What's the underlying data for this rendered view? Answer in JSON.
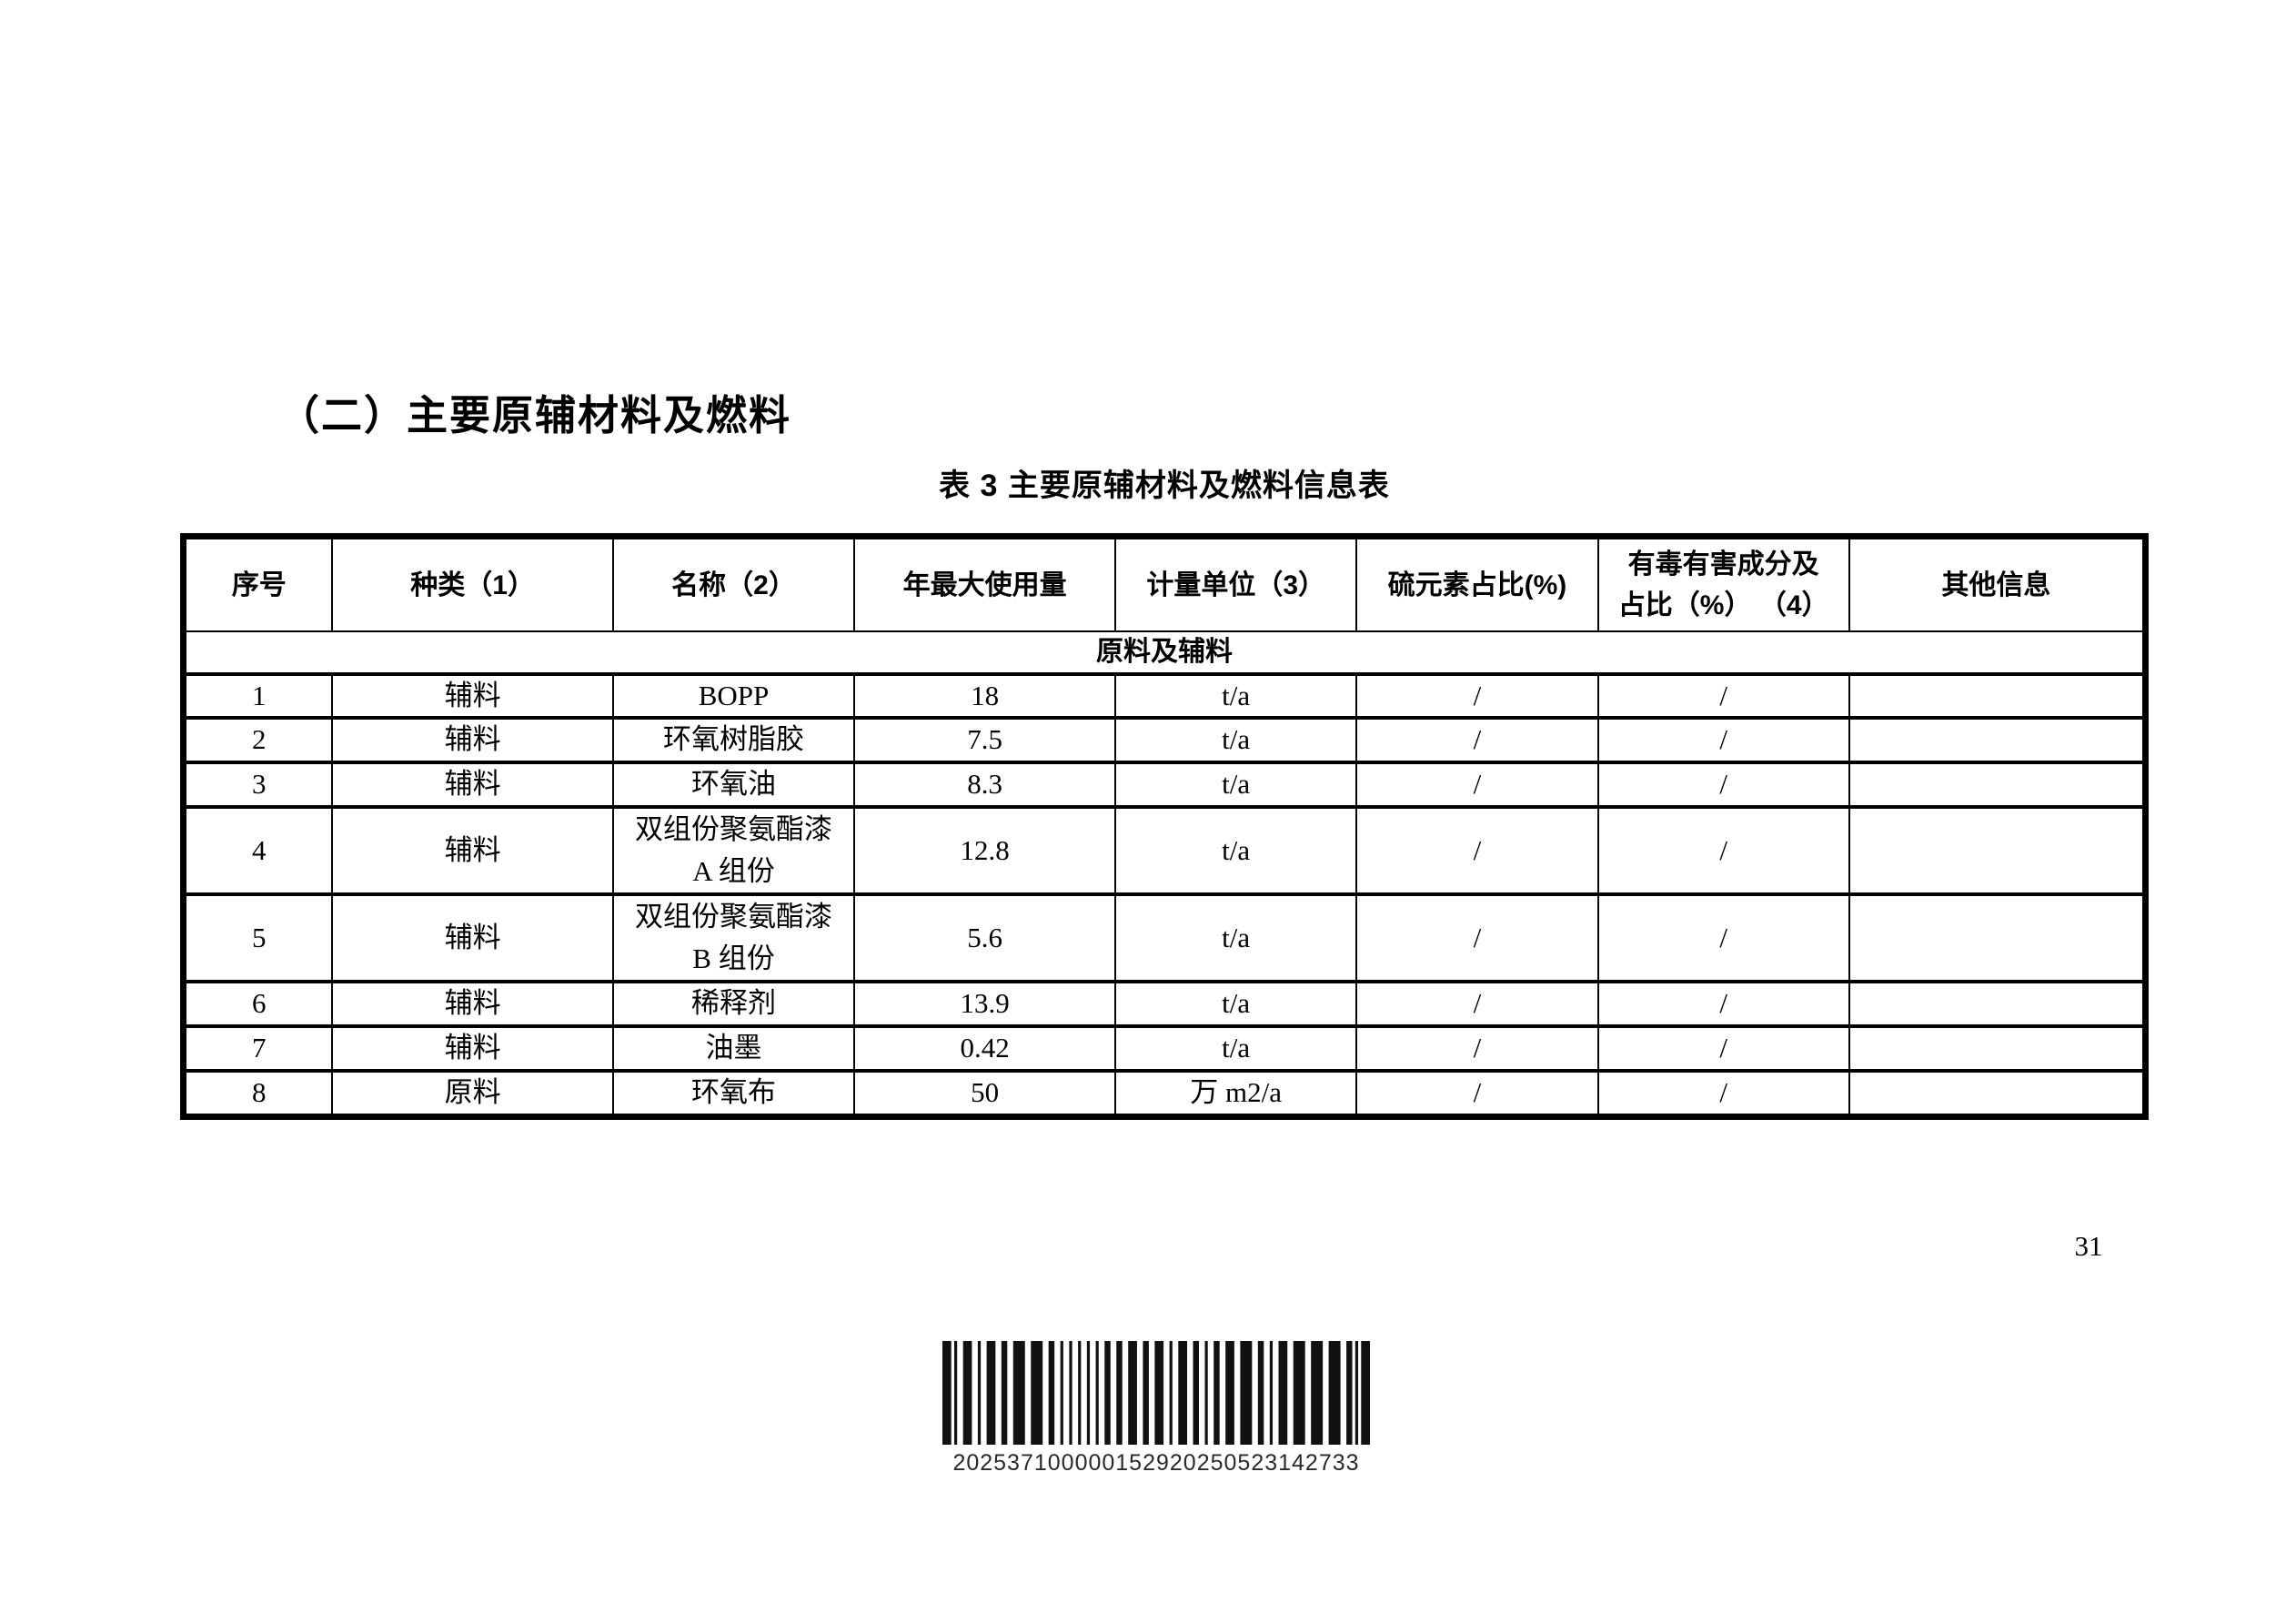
{
  "heading": "（二）主要原辅材料及燃料",
  "page_number": "31",
  "table": {
    "caption": "表 3 主要原辅材料及燃料信息表",
    "columns": [
      "序号",
      "种类（1）",
      "名称（2）",
      "年最大使用量",
      "计量单位（3）",
      "硫元素占比(%)",
      "有毒有害成分及\n占比（%） （4）",
      "其他信息"
    ],
    "col_widths_percent": [
      7.6,
      14.3,
      12.3,
      13.3,
      12.3,
      12.3,
      12.8,
      15.1
    ],
    "section_header": "原料及辅料",
    "rows": [
      {
        "no": "1",
        "type": "辅料",
        "name": "BOPP",
        "max_annual_usage": "18",
        "unit": "t/a",
        "sulfur_percent": "/",
        "toxic_percent": "/",
        "other": ""
      },
      {
        "no": "2",
        "type": "辅料",
        "name": "环氧树脂胶",
        "max_annual_usage": "7.5",
        "unit": "t/a",
        "sulfur_percent": "/",
        "toxic_percent": "/",
        "other": ""
      },
      {
        "no": "3",
        "type": "辅料",
        "name": "环氧油",
        "max_annual_usage": "8.3",
        "unit": "t/a",
        "sulfur_percent": "/",
        "toxic_percent": "/",
        "other": ""
      },
      {
        "no": "4",
        "type": "辅料",
        "name": "双组份聚氨酯漆\nA 组份",
        "max_annual_usage": "12.8",
        "unit": "t/a",
        "sulfur_percent": "/",
        "toxic_percent": "/",
        "other": ""
      },
      {
        "no": "5",
        "type": "辅料",
        "name": "双组份聚氨酯漆\nB 组份",
        "max_annual_usage": "5.6",
        "unit": "t/a",
        "sulfur_percent": "/",
        "toxic_percent": "/",
        "other": ""
      },
      {
        "no": "6",
        "type": "辅料",
        "name": "稀释剂",
        "max_annual_usage": "13.9",
        "unit": "t/a",
        "sulfur_percent": "/",
        "toxic_percent": "/",
        "other": ""
      },
      {
        "no": "7",
        "type": "辅料",
        "name": "油墨",
        "max_annual_usage": "0.42",
        "unit": "t/a",
        "sulfur_percent": "/",
        "toxic_percent": "/",
        "other": ""
      },
      {
        "no": "8",
        "type": "原料",
        "name": "环氧布",
        "max_annual_usage": "50",
        "unit": "万 m2/a",
        "sulfur_percent": "/",
        "toxic_percent": "/",
        "other": ""
      }
    ]
  },
  "barcode": {
    "value": "202537100000152920250523142733"
  },
  "colors": {
    "ink": "#000000",
    "barcode_text": "#2a2a2a",
    "paper": "#ffffff"
  }
}
